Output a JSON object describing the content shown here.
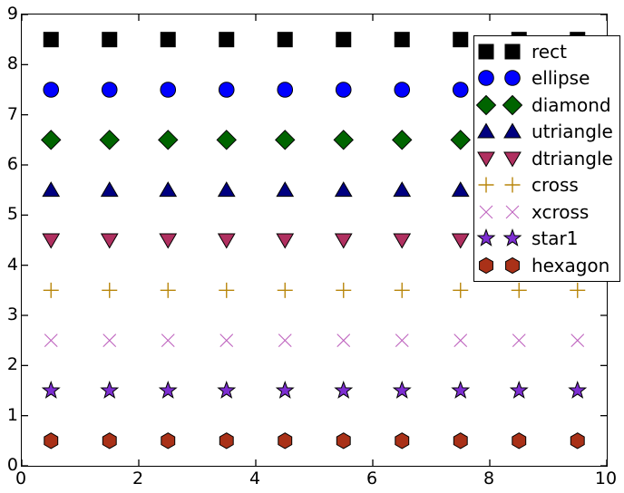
{
  "figure": {
    "background": "#ffffff",
    "axes_color": "#000000",
    "x_tick_labels": [
      "0",
      "2",
      "4",
      "6",
      "8",
      "10"
    ],
    "y_tick_labels": [
      "0",
      "1",
      "2",
      "3",
      "4",
      "5",
      "6",
      "7",
      "8",
      "9"
    ]
  },
  "legend": {
    "position": "upper right",
    "markers_per_entry": 2,
    "entries": [
      "rect",
      "ellipse",
      "diamond",
      "utriangle",
      "dtriangle",
      "cross",
      "xcross",
      "star1",
      "hexagon"
    ]
  },
  "chart_data": {
    "type": "scatter",
    "title": "",
    "xlabel": "",
    "ylabel": "",
    "xlim": [
      0,
      10
    ],
    "ylim": [
      0,
      9
    ],
    "x_ticks": [
      0,
      2,
      4,
      6,
      8,
      10
    ],
    "y_ticks": [
      0,
      1,
      2,
      3,
      4,
      5,
      6,
      7,
      8,
      9
    ],
    "grid": false,
    "legend_position": "upper right",
    "x": [
      0.5,
      1.5,
      2.5,
      3.5,
      4.5,
      5.5,
      6.5,
      7.5,
      8.5,
      9.5
    ],
    "series": [
      {
        "name": "rect",
        "marker": "rect",
        "color": "#000000",
        "y": 8.5
      },
      {
        "name": "ellipse",
        "marker": "ellipse",
        "color": "#0000ff",
        "y": 7.5
      },
      {
        "name": "diamond",
        "marker": "diamond",
        "color": "#006400",
        "y": 6.5
      },
      {
        "name": "utriangle",
        "marker": "utriangle",
        "color": "#000080",
        "y": 5.5
      },
      {
        "name": "dtriangle",
        "marker": "dtriangle",
        "color": "#b03060",
        "y": 4.5
      },
      {
        "name": "cross",
        "marker": "cross",
        "color": "#b8860b",
        "y": 3.5
      },
      {
        "name": "xcross",
        "marker": "xcross",
        "color": "#bf65bf",
        "y": 2.5
      },
      {
        "name": "star1",
        "marker": "star1",
        "color": "#7d2ed2",
        "y": 1.5
      },
      {
        "name": "hexagon",
        "marker": "hexagon",
        "color": "#a93118",
        "y": 0.5
      }
    ]
  }
}
